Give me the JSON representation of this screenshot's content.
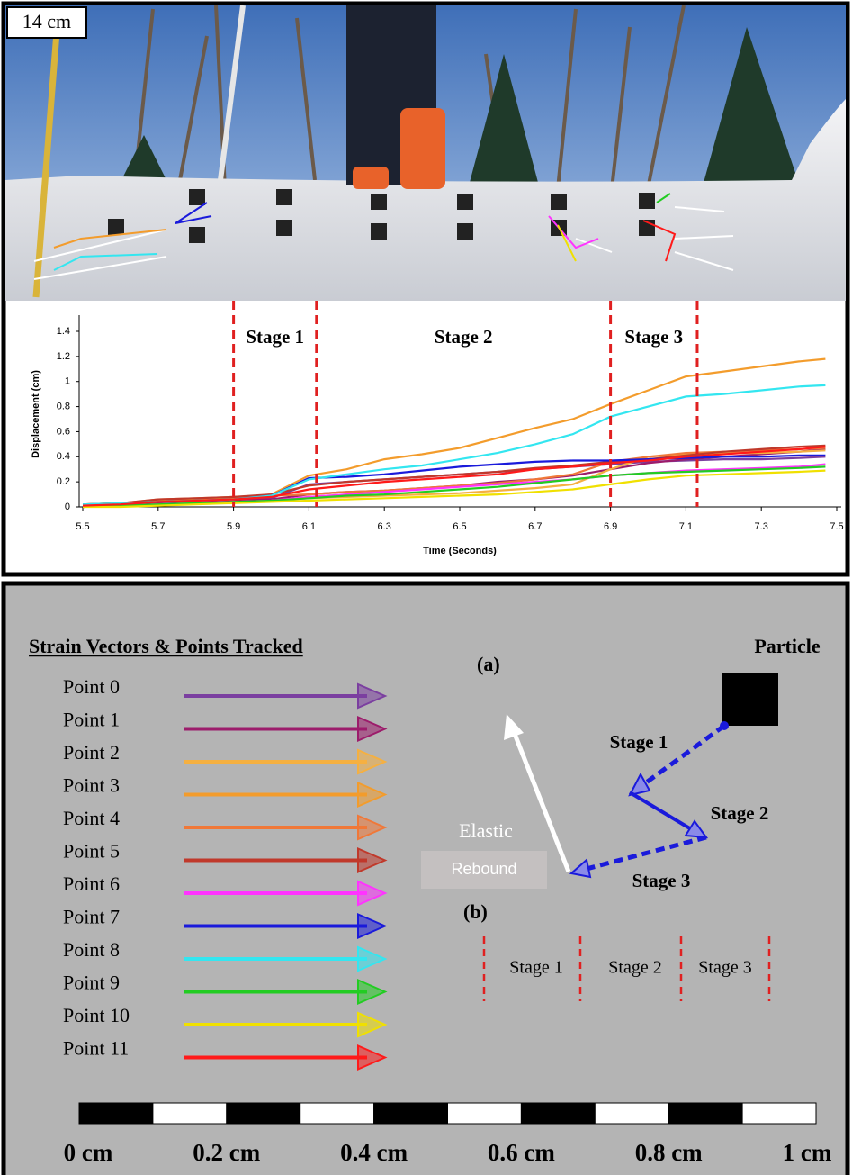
{
  "photo": {
    "label": "14 cm"
  },
  "chart_data": {
    "type": "line",
    "y_label": "Displacement (cm)",
    "x_label": "Time (Seconds)",
    "xlim": [
      5.5,
      7.5
    ],
    "xticks": [
      5.5,
      5.7,
      5.9,
      6.1,
      6.3,
      6.5,
      6.7,
      6.9,
      7.1,
      7.3,
      7.5
    ],
    "ylim": [
      0,
      1.4
    ],
    "yticks": [
      0,
      0.2,
      0.4,
      0.6,
      0.8,
      1,
      1.2,
      1.4
    ],
    "stage_lines": [
      5.9,
      6.12,
      6.9,
      7.13
    ],
    "stage_labels": [
      "Stage 1",
      "Stage 2",
      "Stage 3"
    ],
    "x": [
      5.5,
      5.6,
      5.7,
      5.8,
      5.9,
      6.0,
      6.1,
      6.2,
      6.3,
      6.4,
      6.5,
      6.6,
      6.7,
      6.8,
      6.9,
      7.0,
      7.1,
      7.2,
      7.3,
      7.4,
      7.47
    ],
    "series": [
      {
        "name": "Point 0",
        "color": "#7b3fa0",
        "values": [
          0,
          0.02,
          0.03,
          0.04,
          0.05,
          0.07,
          0.18,
          0.2,
          0.22,
          0.24,
          0.26,
          0.28,
          0.3,
          0.32,
          0.34,
          0.36,
          0.37,
          0.38,
          0.38,
          0.39,
          0.4
        ]
      },
      {
        "name": "Point 1",
        "color": "#9c1c6b",
        "values": [
          0,
          0.01,
          0.03,
          0.04,
          0.05,
          0.06,
          0.1,
          0.12,
          0.13,
          0.15,
          0.17,
          0.2,
          0.22,
          0.25,
          0.3,
          0.35,
          0.38,
          0.4,
          0.42,
          0.44,
          0.46
        ]
      },
      {
        "name": "Point 2",
        "color": "#f5b041",
        "values": [
          0,
          0.01,
          0.02,
          0.03,
          0.04,
          0.05,
          0.07,
          0.08,
          0.09,
          0.1,
          0.11,
          0.13,
          0.15,
          0.18,
          0.3,
          0.4,
          0.42,
          0.43,
          0.43,
          0.44,
          0.45
        ]
      },
      {
        "name": "Point 3",
        "color": "#f39c2c",
        "values": [
          0.02,
          0.03,
          0.05,
          0.06,
          0.07,
          0.1,
          0.25,
          0.3,
          0.38,
          0.42,
          0.47,
          0.55,
          0.63,
          0.7,
          0.82,
          0.93,
          1.04,
          1.08,
          1.12,
          1.16,
          1.18
        ]
      },
      {
        "name": "Point 4",
        "color": "#f07838",
        "values": [
          0.02,
          0.03,
          0.06,
          0.07,
          0.08,
          0.09,
          0.1,
          0.12,
          0.13,
          0.15,
          0.17,
          0.19,
          0.22,
          0.26,
          0.36,
          0.4,
          0.43,
          0.44,
          0.45,
          0.46,
          0.47
        ]
      },
      {
        "name": "Point 5",
        "color": "#c0392b",
        "values": [
          0.02,
          0.03,
          0.06,
          0.07,
          0.08,
          0.1,
          0.17,
          0.2,
          0.22,
          0.24,
          0.26,
          0.28,
          0.31,
          0.33,
          0.36,
          0.38,
          0.41,
          0.44,
          0.46,
          0.48,
          0.49
        ]
      },
      {
        "name": "Point 6",
        "color": "#ff33ff",
        "values": [
          0,
          0.01,
          0.02,
          0.03,
          0.04,
          0.05,
          0.08,
          0.1,
          0.12,
          0.14,
          0.16,
          0.18,
          0.2,
          0.22,
          0.25,
          0.27,
          0.29,
          0.3,
          0.31,
          0.32,
          0.34
        ]
      },
      {
        "name": "Point 7",
        "color": "#1a1adb",
        "values": [
          0,
          0.02,
          0.04,
          0.05,
          0.06,
          0.09,
          0.23,
          0.24,
          0.26,
          0.29,
          0.32,
          0.34,
          0.36,
          0.37,
          0.37,
          0.38,
          0.39,
          0.4,
          0.4,
          0.41,
          0.41
        ]
      },
      {
        "name": "Point 8",
        "color": "#33e6f0",
        "values": [
          0.02,
          0.03,
          0.04,
          0.05,
          0.06,
          0.09,
          0.22,
          0.26,
          0.3,
          0.33,
          0.38,
          0.43,
          0.5,
          0.58,
          0.72,
          0.8,
          0.88,
          0.9,
          0.93,
          0.96,
          0.97
        ]
      },
      {
        "name": "Point 9",
        "color": "#22cc22",
        "values": [
          0,
          0.01,
          0.02,
          0.03,
          0.04,
          0.05,
          0.07,
          0.09,
          0.1,
          0.12,
          0.14,
          0.16,
          0.19,
          0.22,
          0.25,
          0.27,
          0.28,
          0.29,
          0.3,
          0.31,
          0.32
        ]
      },
      {
        "name": "Point 10",
        "color": "#f0e000",
        "values": [
          0,
          0,
          0.01,
          0.02,
          0.03,
          0.04,
          0.05,
          0.06,
          0.07,
          0.08,
          0.09,
          0.1,
          0.12,
          0.14,
          0.18,
          0.22,
          0.25,
          0.26,
          0.27,
          0.28,
          0.29
        ]
      },
      {
        "name": "Point 11",
        "color": "#ff1a1a",
        "values": [
          0.01,
          0.02,
          0.04,
          0.05,
          0.06,
          0.08,
          0.14,
          0.17,
          0.2,
          0.22,
          0.24,
          0.26,
          0.3,
          0.32,
          0.35,
          0.37,
          0.4,
          0.42,
          0.44,
          0.46,
          0.48
        ]
      }
    ]
  },
  "legend_panel": {
    "title": "Strain Vectors & Points Tracked",
    "diagram_a": {
      "label": "(a)",
      "particle": "Particle",
      "stages": [
        "Stage 1",
        "Stage 2",
        "Stage 3"
      ],
      "elastic": "Elastic",
      "rebound": "Rebound"
    },
    "diagram_b": {
      "label": "(b)",
      "stages": [
        "Stage 1",
        "Stage 2",
        "Stage 3"
      ]
    },
    "scale_bar": [
      "0 cm",
      "0.2 cm",
      "0.4 cm",
      "0.6 cm",
      "0.8 cm",
      "1 cm"
    ]
  }
}
